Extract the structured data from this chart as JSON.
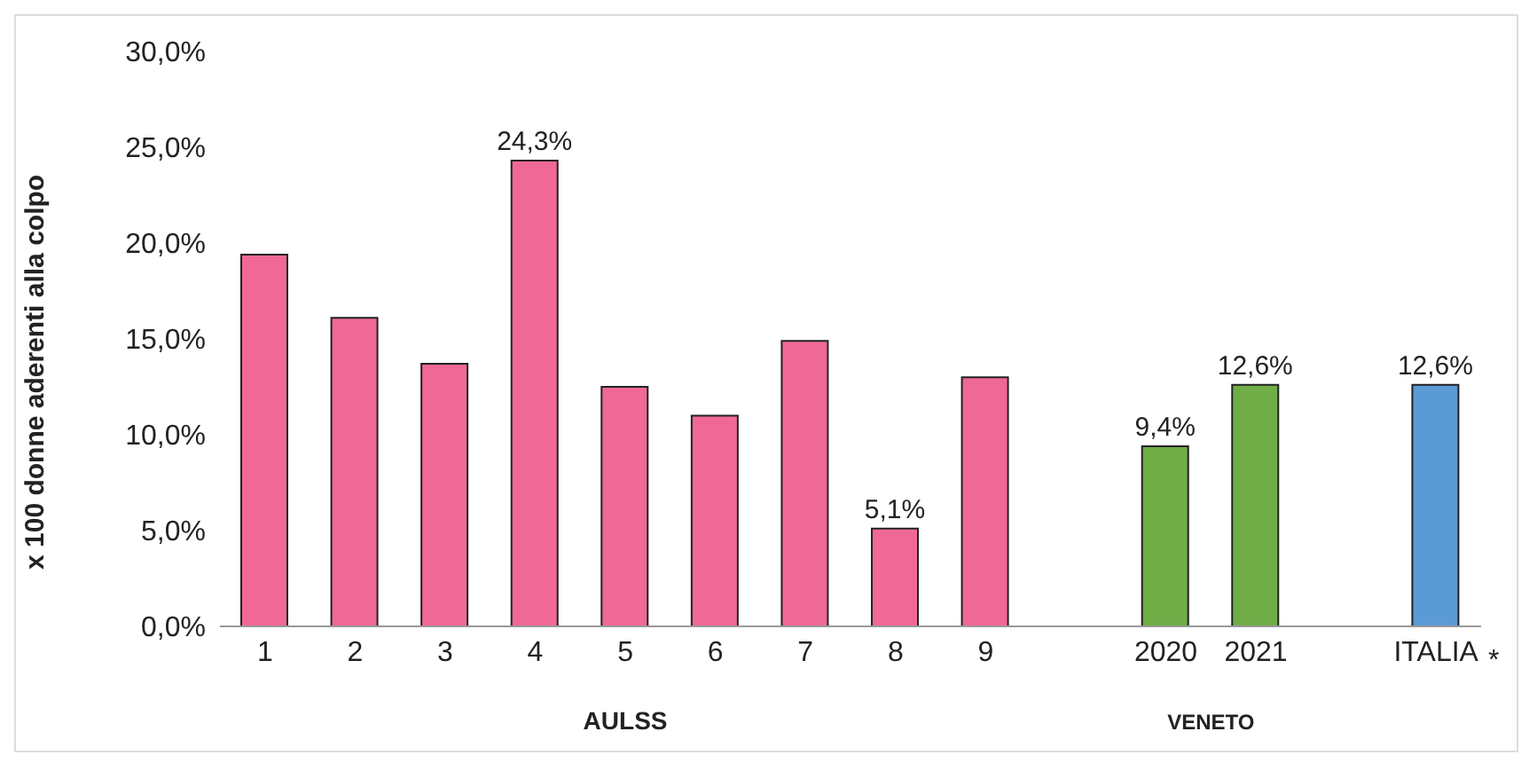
{
  "chart_data": {
    "type": "bar",
    "ylabel": "x 100 donne aderenti alla colpo",
    "categories": [
      "1",
      "2",
      "3",
      "4",
      "5",
      "6",
      "7",
      "8",
      "9",
      null,
      "2020",
      "2021",
      null,
      "ITALIA"
    ],
    "values": [
      19.4,
      16.1,
      13.7,
      24.3,
      12.5,
      11.0,
      14.9,
      5.1,
      13.0,
      null,
      9.4,
      12.6,
      null,
      12.6
    ],
    "colors": [
      "#f06895",
      "#f06895",
      "#f06895",
      "#f06895",
      "#f06895",
      "#f06895",
      "#f06895",
      "#f06895",
      "#f06895",
      null,
      "#70ad47",
      "#70ad47",
      null,
      "#5b9bd5"
    ],
    "value_labels": [
      null,
      null,
      null,
      "24,3%",
      null,
      null,
      null,
      "5,1%",
      null,
      null,
      "9,4%",
      "12,6%",
      null,
      "12,6%"
    ],
    "ylim": [
      0,
      30
    ],
    "yticks": [
      {
        "value": 0,
        "label": "0,0%"
      },
      {
        "value": 5,
        "label": "5,0%"
      },
      {
        "value": 10,
        "label": "10,0%"
      },
      {
        "value": 15,
        "label": "15,0%"
      },
      {
        "value": 20,
        "label": "20,0%"
      },
      {
        "value": 25,
        "label": "25,0%"
      },
      {
        "value": 30,
        "label": "30,0%"
      }
    ],
    "grid": false,
    "annotations": [
      "AULSS",
      "VENETO",
      "*"
    ]
  }
}
